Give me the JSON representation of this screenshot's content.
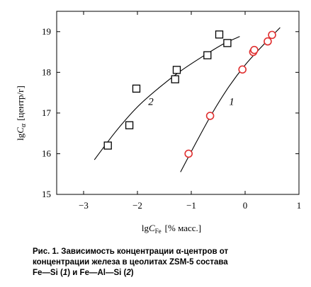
{
  "chart_data": {
    "type": "scatter",
    "x_range": [
      -3.5,
      1.0
    ],
    "y_range": [
      15,
      19.5
    ],
    "x_ticks": [
      -3,
      -2,
      -1,
      0,
      1
    ],
    "y_ticks": [
      15,
      16,
      17,
      18,
      19
    ],
    "x_tick_labels": [
      "−3",
      "−2",
      "−1",
      "0",
      "1"
    ],
    "y_tick_labels": [
      "15",
      "16",
      "17",
      "18",
      "19"
    ],
    "xlabel_main": "lg",
    "xlabel_var": "C",
    "xlabel_sub": "Fe",
    "xlabel_unit": "[% масс.]",
    "ylabel_main": "lg",
    "ylabel_var": "C",
    "ylabel_sub": "α",
    "ylabel_unit": "[центр/г]",
    "grid": false,
    "series": [
      {
        "name": "1",
        "marker": "circle",
        "color": "#e03030",
        "points": [
          {
            "x": -1.05,
            "y": 16.0
          },
          {
            "x": -0.65,
            "y": 16.93
          },
          {
            "x": -0.05,
            "y": 18.07
          },
          {
            "x": 0.15,
            "y": 18.5
          },
          {
            "x": 0.17,
            "y": 18.55
          },
          {
            "x": 0.42,
            "y": 18.76
          },
          {
            "x": 0.5,
            "y": 18.92
          }
        ],
        "curve": [
          {
            "x": -1.2,
            "y": 15.55
          },
          {
            "x": -0.9,
            "y": 16.3
          },
          {
            "x": -0.6,
            "y": 17.02
          },
          {
            "x": -0.3,
            "y": 17.65
          },
          {
            "x": 0.0,
            "y": 18.18
          },
          {
            "x": 0.3,
            "y": 18.62
          },
          {
            "x": 0.65,
            "y": 19.1
          }
        ],
        "label_pos": {
          "x": -0.25,
          "y": 17.2
        }
      },
      {
        "name": "2",
        "marker": "square",
        "color": "#000000",
        "points": [
          {
            "x": -2.55,
            "y": 16.2
          },
          {
            "x": -2.15,
            "y": 16.7
          },
          {
            "x": -2.02,
            "y": 17.6
          },
          {
            "x": -1.3,
            "y": 17.83
          },
          {
            "x": -1.27,
            "y": 18.06
          },
          {
            "x": -0.7,
            "y": 18.42
          },
          {
            "x": -0.48,
            "y": 18.93
          },
          {
            "x": -0.33,
            "y": 18.72
          }
        ],
        "curve": [
          {
            "x": -2.8,
            "y": 15.85
          },
          {
            "x": -2.4,
            "y": 16.55
          },
          {
            "x": -2.0,
            "y": 17.15
          },
          {
            "x": -1.6,
            "y": 17.62
          },
          {
            "x": -1.2,
            "y": 18.03
          },
          {
            "x": -0.8,
            "y": 18.38
          },
          {
            "x": -0.4,
            "y": 18.7
          },
          {
            "x": -0.1,
            "y": 18.88
          }
        ],
        "label_pos": {
          "x": -1.75,
          "y": 17.2
        }
      }
    ]
  },
  "caption": {
    "prefix": "Рис. 1. Зависимость концентрации ",
    "alpha": "α",
    "line1_rest": "-центров от",
    "line2": "концентрации железа в цеолитах ZSM-5 состава",
    "fe": "Fe",
    "dash1": "—",
    "si": "Si",
    "paren1_open": " (",
    "n1": "1",
    "paren1_close": ")",
    "and": " и ",
    "fe2": "Fe",
    "dash2": "—",
    "al": "Al",
    "dash3": "—",
    "si2": "Si",
    "paren2_open": " (",
    "n2": "2",
    "paren2_close": ")"
  }
}
